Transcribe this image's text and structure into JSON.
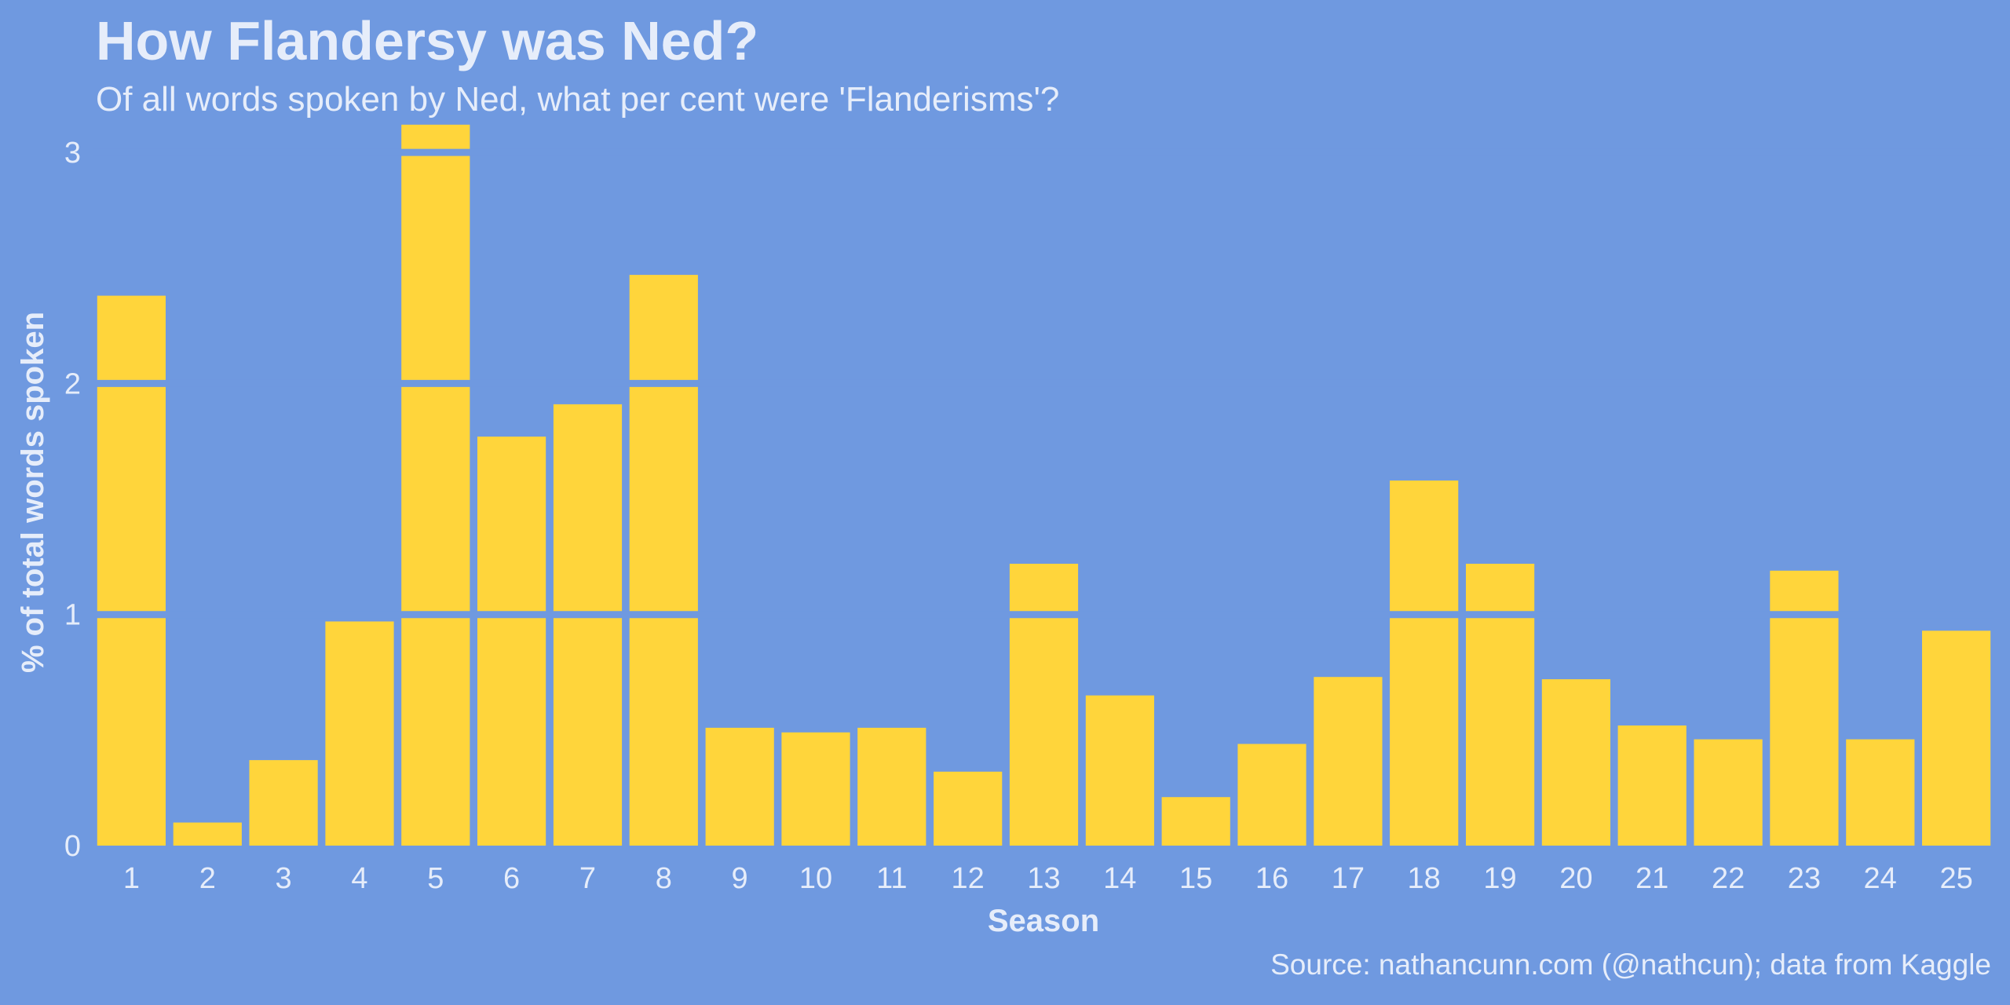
{
  "title": "How Flandersy was Ned?",
  "subtitle": "Of all words spoken by Ned, what per cent were 'Flanderisms'?",
  "source": "Source: nathancunn.com (@nathcun); data from Kaggle",
  "colors": {
    "background": "#6f99e0",
    "bar": "#ffd53b",
    "text": "#e6edfa"
  },
  "chart_data": {
    "type": "bar",
    "xlabel": "Season",
    "ylabel": "% of total words spoken",
    "categories": [
      "1",
      "2",
      "3",
      "4",
      "5",
      "6",
      "7",
      "8",
      "9",
      "10",
      "11",
      "12",
      "13",
      "14",
      "15",
      "16",
      "17",
      "18",
      "19",
      "20",
      "21",
      "22",
      "23",
      "24",
      "25"
    ],
    "values": [
      2.38,
      0.1,
      0.37,
      0.97,
      3.12,
      1.77,
      1.91,
      2.47,
      0.51,
      0.49,
      0.51,
      0.32,
      1.22,
      0.65,
      0.21,
      0.44,
      0.73,
      1.58,
      1.22,
      0.72,
      0.52,
      0.46,
      1.19,
      0.46,
      0.93
    ],
    "ylim": [
      0,
      3.15
    ],
    "yticks": [
      0,
      1,
      2,
      3
    ],
    "grid": true,
    "legend": "none"
  }
}
